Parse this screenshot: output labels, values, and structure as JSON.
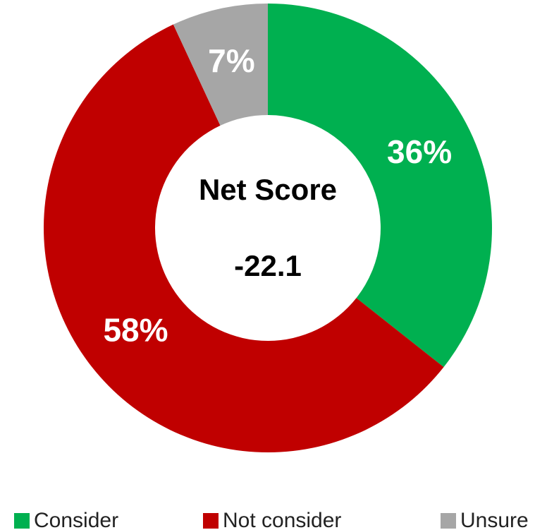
{
  "chart_data": {
    "type": "donut",
    "categories": [
      "Consider",
      "Not consider",
      "Unsure"
    ],
    "values": [
      36,
      58,
      7
    ],
    "value_labels": [
      "36%",
      "58%",
      "7%"
    ],
    "colors": [
      "#00b050",
      "#c00000",
      "#a6a6a6"
    ],
    "center_title": "Net Score",
    "center_value": -22.1,
    "legend": "bottom"
  }
}
